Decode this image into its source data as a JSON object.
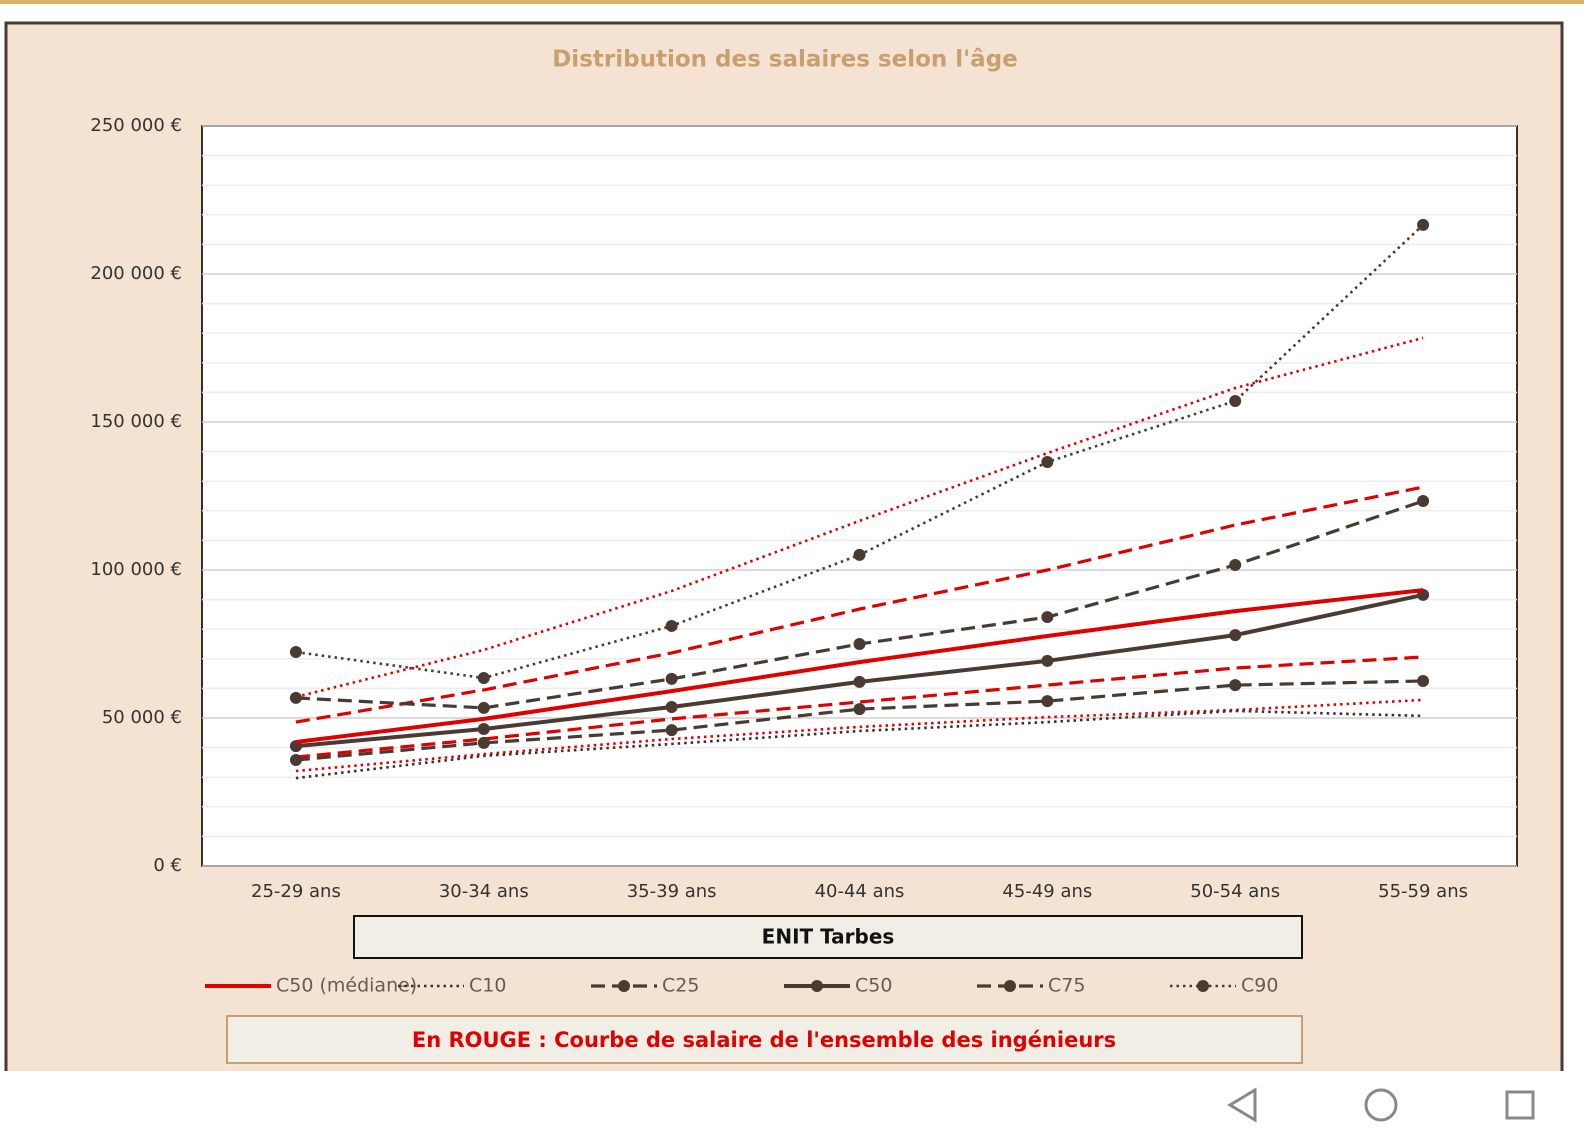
{
  "chart_data": {
    "type": "line",
    "title": "Distribution des salaires selon l'âge",
    "subtitle": "ENIT Tarbes",
    "annotation": "En ROUGE : Courbe de salaire de l'ensemble des ingénieurs",
    "categories": [
      "25-29 ans",
      "30-34 ans",
      "35-39 ans",
      "40-44 ans",
      "45-49 ans",
      "50-54 ans",
      "55-59 ans"
    ],
    "ylim": [
      0,
      250000
    ],
    "yticks": [
      {
        "value": 0,
        "label": "0 €"
      },
      {
        "value": 50000,
        "label": "50 000 €"
      },
      {
        "value": 100000,
        "label": "100 000 €"
      },
      {
        "value": 150000,
        "label": "150 000 €"
      },
      {
        "value": 200000,
        "label": "200 000 €"
      },
      {
        "value": 250000,
        "label": "250 000 €"
      }
    ],
    "yminor": [
      10000,
      20000,
      30000,
      40000,
      60000,
      70000,
      80000,
      90000,
      110000,
      120000,
      130000,
      140000,
      160000,
      170000,
      180000,
      190000,
      210000,
      220000,
      230000,
      240000
    ],
    "grid": true,
    "legend": "bottom",
    "series": [
      {
        "name": "C50 (médiane)",
        "color": "#e00000",
        "dash": "solid",
        "markers": false,
        "values": [
          41900,
          49700,
          59100,
          68900,
          77700,
          86100,
          93200
        ]
      },
      {
        "name": "C10",
        "color": "#3a2e27",
        "dash": "dotted",
        "markers": false,
        "values": [
          29700,
          37200,
          41200,
          45600,
          48600,
          52400,
          50700
        ]
      },
      {
        "name": "C25",
        "color": "#4a3b32",
        "dash": "dashed",
        "markers": true,
        "values": [
          35800,
          41600,
          45900,
          53000,
          55700,
          61100,
          62500
        ]
      },
      {
        "name": "C50",
        "color": "#4a3b32",
        "dash": "solid",
        "markers": true,
        "values": [
          40500,
          46300,
          53700,
          62200,
          69300,
          78000,
          91600
        ]
      },
      {
        "name": "C75",
        "color": "#4a3b32",
        "dash": "dashed",
        "markers": true,
        "values": [
          56800,
          53400,
          63200,
          75000,
          84100,
          101700,
          123300
        ]
      },
      {
        "name": "C90",
        "color": "#4a3b32",
        "dash": "dotted",
        "markers": true,
        "values": [
          72300,
          63500,
          81100,
          105100,
          136500,
          157100,
          216600
        ]
      },
      {
        "color": "#e00000",
        "dash": "dotted",
        "markers": false,
        "values": [
          32100,
          37800,
          42900,
          47000,
          50300,
          52700,
          56100
        ]
      },
      {
        "color": "#e00000",
        "dash": "dashed",
        "markers": false,
        "values": [
          36800,
          42900,
          49700,
          55400,
          61100,
          66900,
          70600
        ]
      },
      {
        "color": "#e00000",
        "dash": "dashed",
        "markers": false,
        "values": [
          48600,
          59500,
          72000,
          86800,
          100000,
          115200,
          128000
        ]
      },
      {
        "color": "#e00000",
        "dash": "dotted",
        "markers": false,
        "values": [
          57100,
          73000,
          92900,
          116600,
          139500,
          161500,
          178400
        ]
      }
    ]
  }
}
